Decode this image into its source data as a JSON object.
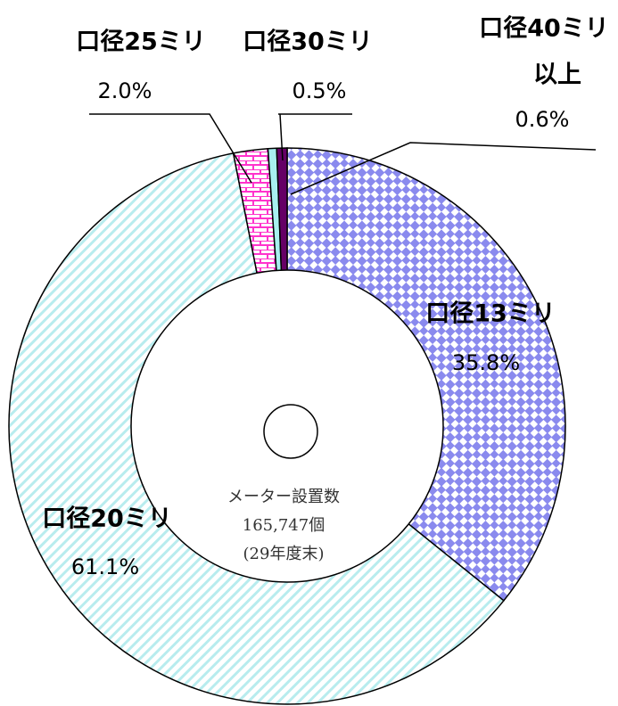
{
  "chart_data": {
    "type": "donut",
    "categories": [
      "口径13ミリ",
      "口径20ミリ",
      "口径25ミリ",
      "口径30ミリ",
      [
        "口径40ミリ",
        "以上"
      ]
    ],
    "values": [
      35.8,
      61.1,
      2.0,
      0.5,
      0.6
    ],
    "value_labels": [
      "35.8%",
      "61.1%",
      "2.0%",
      "0.5%",
      "0.6%"
    ],
    "colors": [
      "#8a8aee",
      "#b8ecee",
      "#ff33cc",
      "#a8f0f0",
      "#660066"
    ],
    "center_text": [
      "メーター設置数",
      "165,747個",
      "(29年度末)"
    ]
  }
}
